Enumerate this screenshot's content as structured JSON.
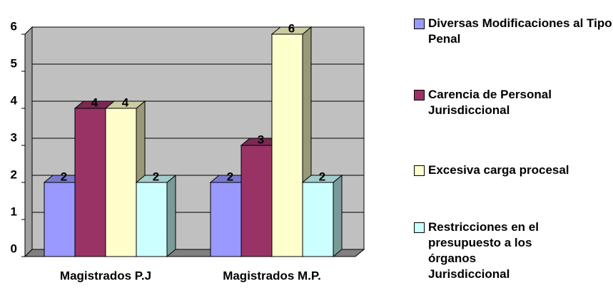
{
  "chart_data": {
    "type": "bar3d",
    "categories": [
      "Magistrados P.J",
      "Magistrados M.P."
    ],
    "series": [
      {
        "name": "Diversas Modificaciones al Tipo Penal",
        "color": "#9999ff",
        "values": [
          2,
          2
        ]
      },
      {
        "name": "Carencia de Personal Jurisdiccional",
        "color": "#993366",
        "values": [
          4,
          3
        ]
      },
      {
        "name": "Excesiva carga procesal",
        "color": "#ffffcc",
        "values": [
          4,
          6
        ]
      },
      {
        "name": "Restricciones en el presupuesto a los órganos Jurisdiccional",
        "color": "#ccffff",
        "values": [
          2,
          2
        ]
      }
    ],
    "ylim": [
      0,
      6
    ],
    "yticks": [
      0,
      1,
      2,
      3,
      4,
      5,
      6
    ],
    "grid": true,
    "legend": "right"
  }
}
